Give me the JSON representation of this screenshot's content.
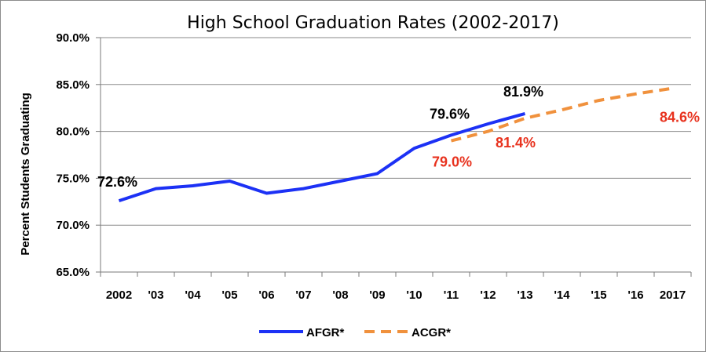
{
  "chart_data": {
    "type": "line",
    "title": "High School Graduation Rates (2002-2017)",
    "xlabel": "",
    "ylabel": "Percent Students Graduating",
    "categories": [
      "2002",
      "'03",
      "'04",
      "'05",
      "'06",
      "'07",
      "'08",
      "'09",
      "'10",
      "'11",
      "'12",
      "'13",
      "'14",
      "'15",
      "'16",
      "2017"
    ],
    "ylim": [
      65,
      90
    ],
    "yticks": [
      "65.0%",
      "70.0%",
      "75.0%",
      "80.0%",
      "85.0%",
      "90.0%"
    ],
    "grid": "horizontal",
    "legend_position": "bottom",
    "series": [
      {
        "name": "AFGR*",
        "color": "#1c31f5",
        "style": "solid",
        "values": [
          72.6,
          73.9,
          74.2,
          74.7,
          73.4,
          73.9,
          74.7,
          75.5,
          78.2,
          79.6,
          80.8,
          81.9,
          null,
          null,
          null,
          null
        ]
      },
      {
        "name": "ACGR*",
        "color": "#f0913d",
        "style": "dashed",
        "values": [
          null,
          null,
          null,
          null,
          null,
          null,
          null,
          null,
          null,
          79.0,
          80.0,
          81.4,
          82.3,
          83.3,
          84.0,
          84.6
        ]
      }
    ],
    "data_labels": [
      {
        "series": "AFGR*",
        "category": "2002",
        "text": "72.6%",
        "color": "#000000"
      },
      {
        "series": "AFGR*",
        "category": "'11",
        "text": "79.6%",
        "color": "#000000"
      },
      {
        "series": "AFGR*",
        "category": "'13",
        "text": "81.9%",
        "color": "#000000"
      },
      {
        "series": "ACGR*",
        "category": "'11",
        "text": "79.0%",
        "color": "#e8321e"
      },
      {
        "series": "ACGR*",
        "category": "'13",
        "text": "81.4%",
        "color": "#e8321e"
      },
      {
        "series": "ACGR*",
        "category": "2017",
        "text": "84.6%",
        "color": "#e8321e"
      }
    ]
  }
}
